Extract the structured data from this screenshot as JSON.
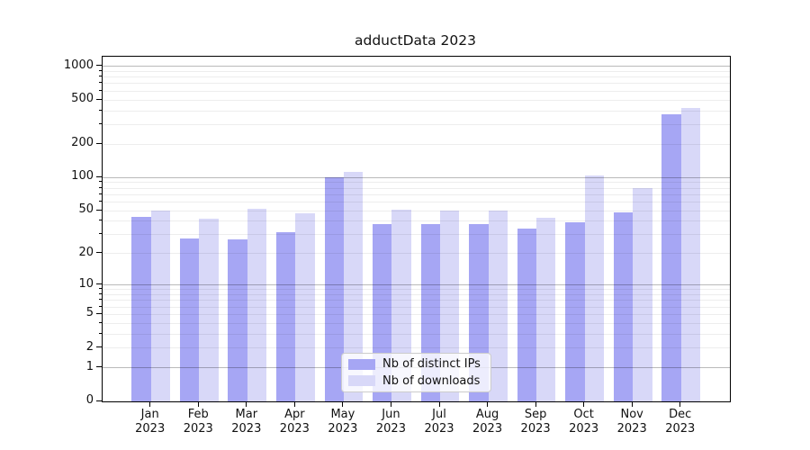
{
  "title": "adductData 2023",
  "chart_data": {
    "type": "bar",
    "title": "adductData 2023",
    "categories": [
      "Jan",
      "Feb",
      "Mar",
      "Apr",
      "May",
      "Jun",
      "Jul",
      "Aug",
      "Sep",
      "Oct",
      "Nov",
      "Dec"
    ],
    "category_year": "2023",
    "series": [
      {
        "name": "Nb of distinct IPs",
        "color": "#a6a6f4",
        "values": [
          44,
          28,
          27,
          32,
          100,
          38,
          38,
          38,
          34,
          39,
          48,
          370
        ]
      },
      {
        "name": "Nb of downloads",
        "color": "#d8d8f8",
        "values": [
          50,
          42,
          52,
          47,
          112,
          51,
          50,
          50,
          43,
          104,
          80,
          420
        ]
      }
    ],
    "yscale": "log1p",
    "ylim": [
      0,
      1220
    ],
    "y_ticks": [
      0,
      1,
      2,
      5,
      10,
      20,
      50,
      100,
      200,
      500,
      1000
    ],
    "y_major_gridlines": [
      1,
      10,
      100,
      1000
    ],
    "y_minor_gridlines": [
      2,
      3,
      4,
      5,
      6,
      7,
      8,
      9,
      20,
      30,
      40,
      50,
      60,
      70,
      80,
      90,
      200,
      300,
      400,
      500,
      600,
      700,
      800,
      900
    ],
    "grid": "horizontal",
    "legend_position": "lower center",
    "colors": {
      "axis": "#000000",
      "grid_major": "#b9b9b9",
      "grid_minor": "#ededed",
      "background": "#ffffff",
      "text": "#111111"
    }
  }
}
